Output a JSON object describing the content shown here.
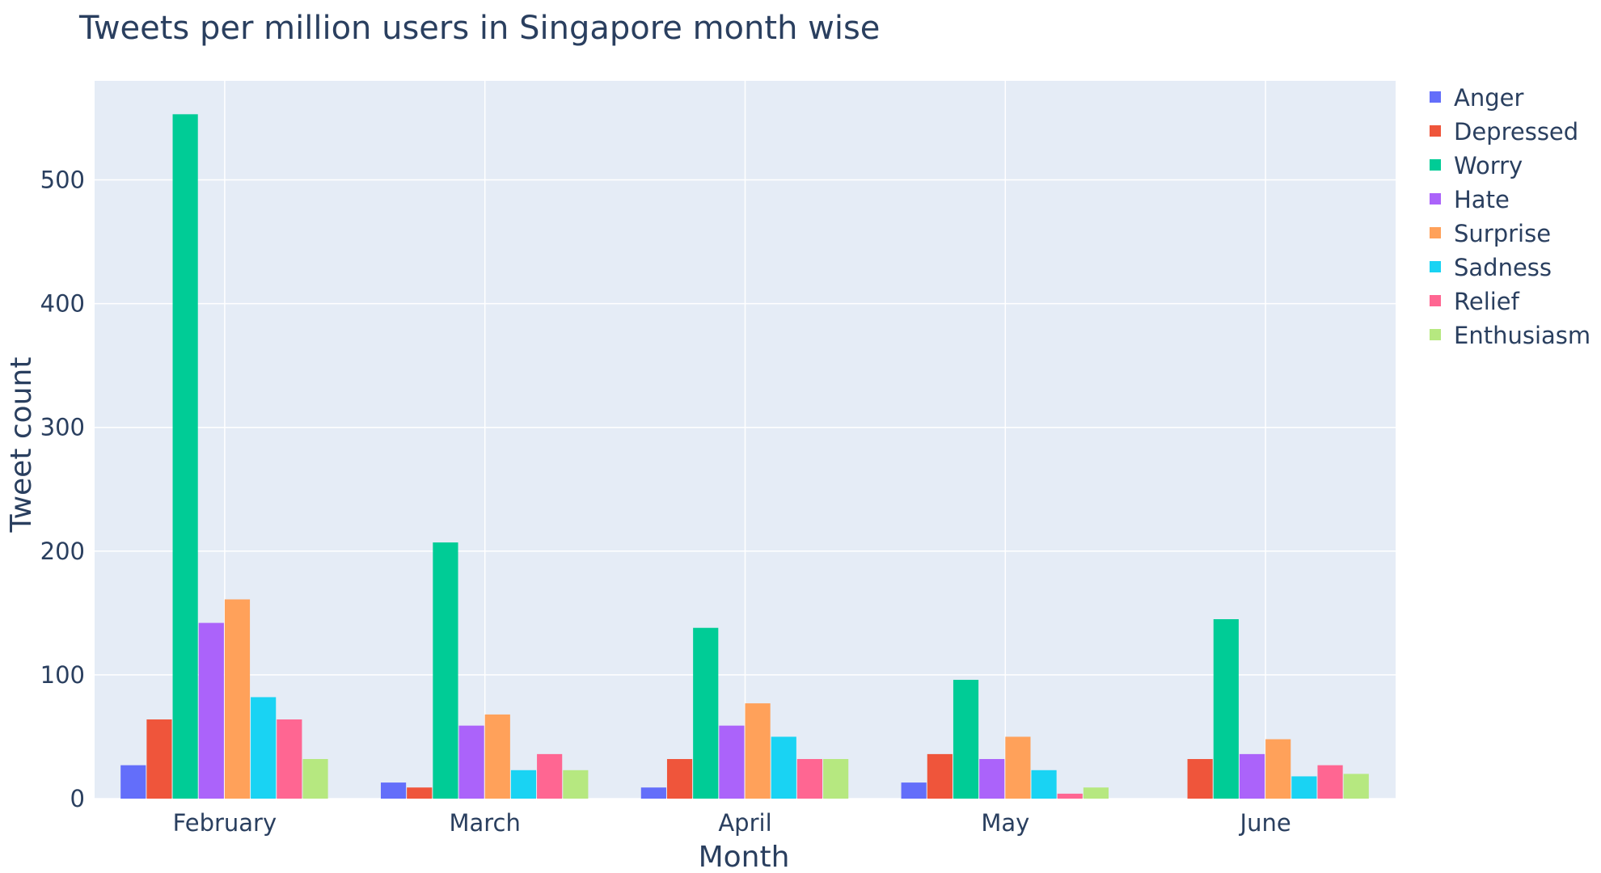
{
  "chart_data": {
    "type": "bar",
    "title": "Tweets per million users in Singapore month wise",
    "xlabel": "Month",
    "ylabel": "Tweet count",
    "categories": [
      "February",
      "March",
      "April",
      "May",
      "June"
    ],
    "ylim": [
      0,
      580
    ],
    "yticks": [
      0,
      100,
      200,
      300,
      400,
      500
    ],
    "grid": true,
    "legend_position": "top-right",
    "plot_background": "#e5ecf6",
    "series": [
      {
        "name": "Anger",
        "color": "#636efa",
        "values": [
          27,
          13,
          9,
          13,
          0
        ]
      },
      {
        "name": "Depressed",
        "color": "#ef553b",
        "values": [
          64,
          9,
          32,
          36,
          32
        ]
      },
      {
        "name": "Worry",
        "color": "#00cc96",
        "values": [
          553,
          207,
          138,
          96,
          145
        ]
      },
      {
        "name": "Hate",
        "color": "#ab63fa",
        "values": [
          142,
          59,
          59,
          32,
          36
        ]
      },
      {
        "name": "Surprise",
        "color": "#ffa15a",
        "values": [
          161,
          68,
          77,
          50,
          48
        ]
      },
      {
        "name": "Sadness",
        "color": "#19d3f3",
        "values": [
          82,
          23,
          50,
          23,
          18
        ]
      },
      {
        "name": "Relief",
        "color": "#ff6692",
        "values": [
          64,
          36,
          32,
          4,
          27
        ]
      },
      {
        "name": "Enthusiasm",
        "color": "#b6e880",
        "values": [
          32,
          23,
          32,
          9,
          20
        ]
      }
    ]
  }
}
